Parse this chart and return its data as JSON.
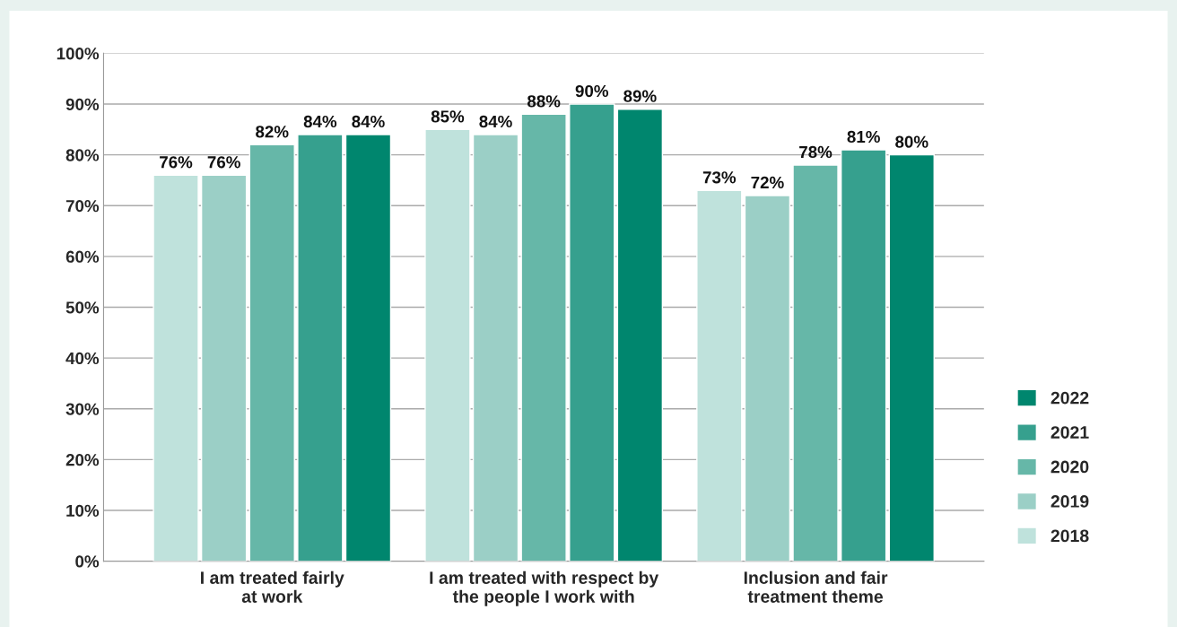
{
  "chart_data": {
    "type": "bar",
    "categories": [
      "I am treated fairly\nat work",
      "I am treated with respect by\nthe people I work with",
      "Inclusion and fair\ntreatment theme"
    ],
    "series": [
      {
        "name": "2018",
        "color": "#bfe2dc",
        "values": [
          76,
          85,
          73
        ],
        "value_labels": [
          "76%",
          "85%",
          "73%"
        ]
      },
      {
        "name": "2019",
        "color": "#9bcfc6",
        "values": [
          76,
          84,
          72
        ],
        "value_labels": [
          "76%",
          "84%",
          "72%"
        ]
      },
      {
        "name": "2020",
        "color": "#66b7a8",
        "values": [
          82,
          88,
          78
        ],
        "value_labels": [
          "82%",
          "88%",
          "78%"
        ]
      },
      {
        "name": "2021",
        "color": "#36a08e",
        "values": [
          84,
          90,
          81
        ],
        "value_labels": [
          "84%",
          "90%",
          "81%"
        ]
      },
      {
        "name": "2022",
        "color": "#00866e",
        "values": [
          84,
          89,
          80
        ],
        "value_labels": [
          "84%",
          "89%",
          "80%"
        ]
      }
    ],
    "ylim": [
      0,
      100
    ],
    "yticks": [
      {
        "value": 0,
        "label": "0%"
      },
      {
        "value": 10,
        "label": "10%"
      },
      {
        "value": 20,
        "label": "20%"
      },
      {
        "value": 30,
        "label": "30%"
      },
      {
        "value": 40,
        "label": "40%"
      },
      {
        "value": 50,
        "label": "50%"
      },
      {
        "value": 60,
        "label": "60%"
      },
      {
        "value": 70,
        "label": "70%"
      },
      {
        "value": 80,
        "label": "80%"
      },
      {
        "value": 90,
        "label": "90%"
      },
      {
        "value": 100,
        "label": "100%"
      }
    ],
    "grid": "y",
    "legend": "right"
  }
}
